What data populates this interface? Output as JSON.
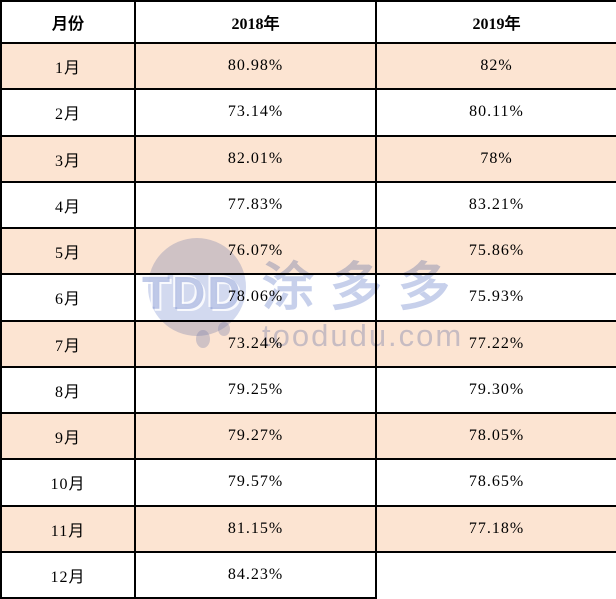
{
  "table": {
    "columns": [
      "月份",
      "2018年",
      "2019年"
    ],
    "rows": [
      {
        "month": "1月",
        "y2018": "80.98%",
        "y2019": "82%"
      },
      {
        "month": "2月",
        "y2018": "73.14%",
        "y2019": "80.11%"
      },
      {
        "month": "3月",
        "y2018": "82.01%",
        "y2019": "78%"
      },
      {
        "month": "4月",
        "y2018": "77.83%",
        "y2019": "83.21%"
      },
      {
        "month": "5月",
        "y2018": "76.07%",
        "y2019": "75.86%"
      },
      {
        "month": "6月",
        "y2018": "78.06%",
        "y2019": "75.93%"
      },
      {
        "month": "7月",
        "y2018": "73.24%",
        "y2019": "77.22%"
      },
      {
        "month": "8月",
        "y2018": "79.25%",
        "y2019": "79.30%"
      },
      {
        "month": "9月",
        "y2018": "79.27%",
        "y2019": "78.05%"
      },
      {
        "month": "10月",
        "y2018": "79.57%",
        "y2019": "78.65%"
      },
      {
        "month": "11月",
        "y2018": "81.15%",
        "y2019": "77.18%"
      },
      {
        "month": "12月",
        "y2018": "84.23%",
        "y2019": ""
      }
    ]
  },
  "watermark": {
    "logo_text": "TDD",
    "brand": "涂多多",
    "url": "toodudu.com"
  },
  "colors": {
    "row_highlight": "#fce4d2",
    "border": "#000000",
    "watermark": "#748acc"
  },
  "chart_data": {
    "type": "table",
    "title": "",
    "categories": [
      "1月",
      "2月",
      "3月",
      "4月",
      "5月",
      "6月",
      "7月",
      "8月",
      "9月",
      "10月",
      "11月",
      "12月"
    ],
    "series": [
      {
        "name": "2018年",
        "values": [
          80.98,
          73.14,
          82.01,
          77.83,
          76.07,
          78.06,
          73.24,
          79.25,
          79.27,
          79.57,
          81.15,
          84.23
        ]
      },
      {
        "name": "2019年",
        "values": [
          82,
          80.11,
          78,
          83.21,
          75.86,
          75.93,
          77.22,
          79.3,
          78.05,
          78.65,
          77.18,
          null
        ]
      }
    ],
    "unit": "%",
    "layout": "first column months, alternating peach/white row fill, black 2px grid borders"
  }
}
